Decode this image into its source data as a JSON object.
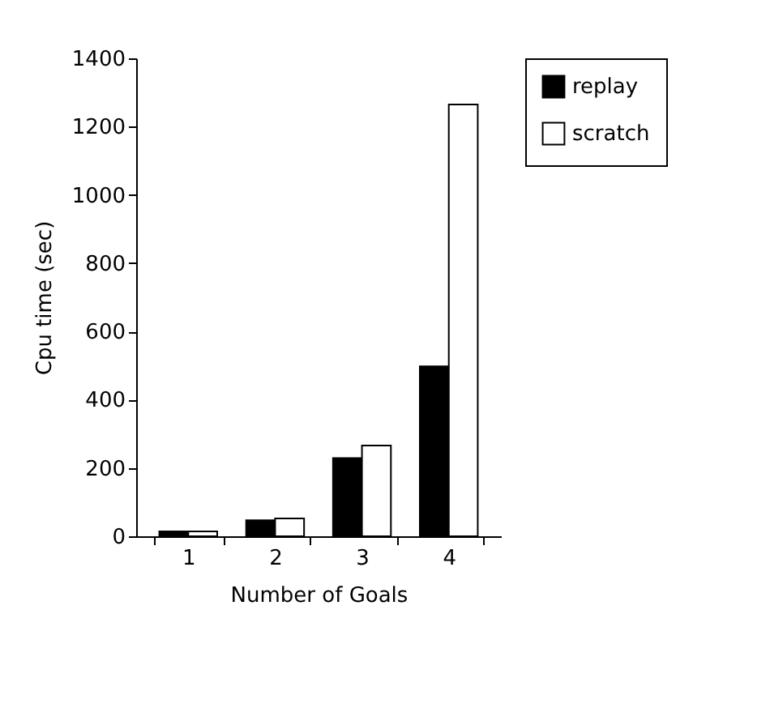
{
  "chart_data": {
    "type": "bar",
    "xlabel": "Number of Goals",
    "ylabel": "Cpu time (sec)",
    "categories": [
      "1",
      "2",
      "3",
      "4"
    ],
    "series": [
      {
        "name": "replay",
        "color": "#000000",
        "values": [
          14,
          47,
          229,
          498
        ]
      },
      {
        "name": "scratch",
        "color": "#ffffff",
        "values": [
          14,
          52,
          266,
          1265
        ]
      }
    ],
    "ylim": [
      0,
      1400
    ],
    "yticks": [
      0,
      200,
      400,
      600,
      800,
      1000,
      1200,
      1400
    ],
    "grid": false,
    "legend": "right"
  }
}
